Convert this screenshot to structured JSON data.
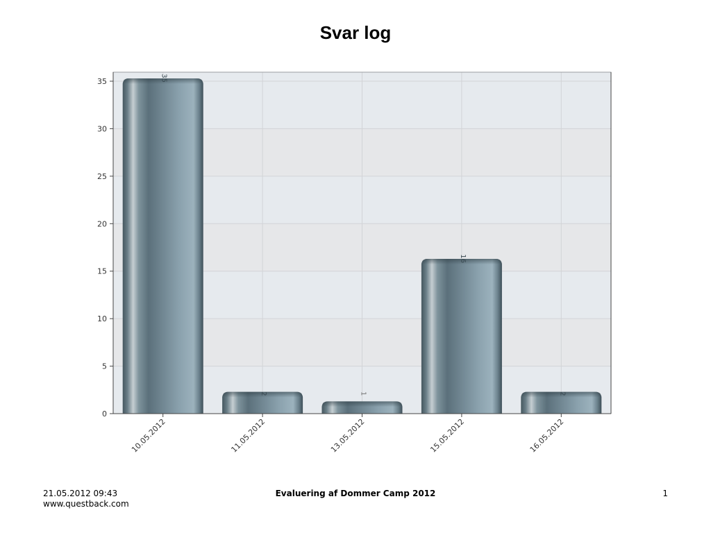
{
  "page": {
    "title": "Svar log"
  },
  "footer": {
    "datetime": "21.05.2012 09:43",
    "website": "www.questback.com",
    "survey_title": "Evaluering af Dommer Camp 2012",
    "page_number": "1"
  },
  "chart_data": {
    "type": "bar",
    "title": "Svar log",
    "xlabel": "",
    "ylabel": "",
    "categories": [
      "10.05.2012",
      "11.05.2012",
      "13.05.2012",
      "15.05.2012",
      "16.05.2012"
    ],
    "values": [
      35,
      2,
      1,
      16,
      2
    ],
    "ylim": [
      0,
      35
    ],
    "yticks": [
      0,
      5,
      10,
      15,
      20,
      25,
      30,
      35
    ],
    "grid": true,
    "legend": "none",
    "colors": {
      "bar_dark": "#3f535e",
      "bar_mid": "#62808d",
      "bar_light": "#97afba",
      "highlight": "#c6d0d4",
      "plot_band_a": "#e6e7e9",
      "plot_band_b": "#e6eaee",
      "grid": "#d2d4d7",
      "axis": "#444444"
    }
  }
}
